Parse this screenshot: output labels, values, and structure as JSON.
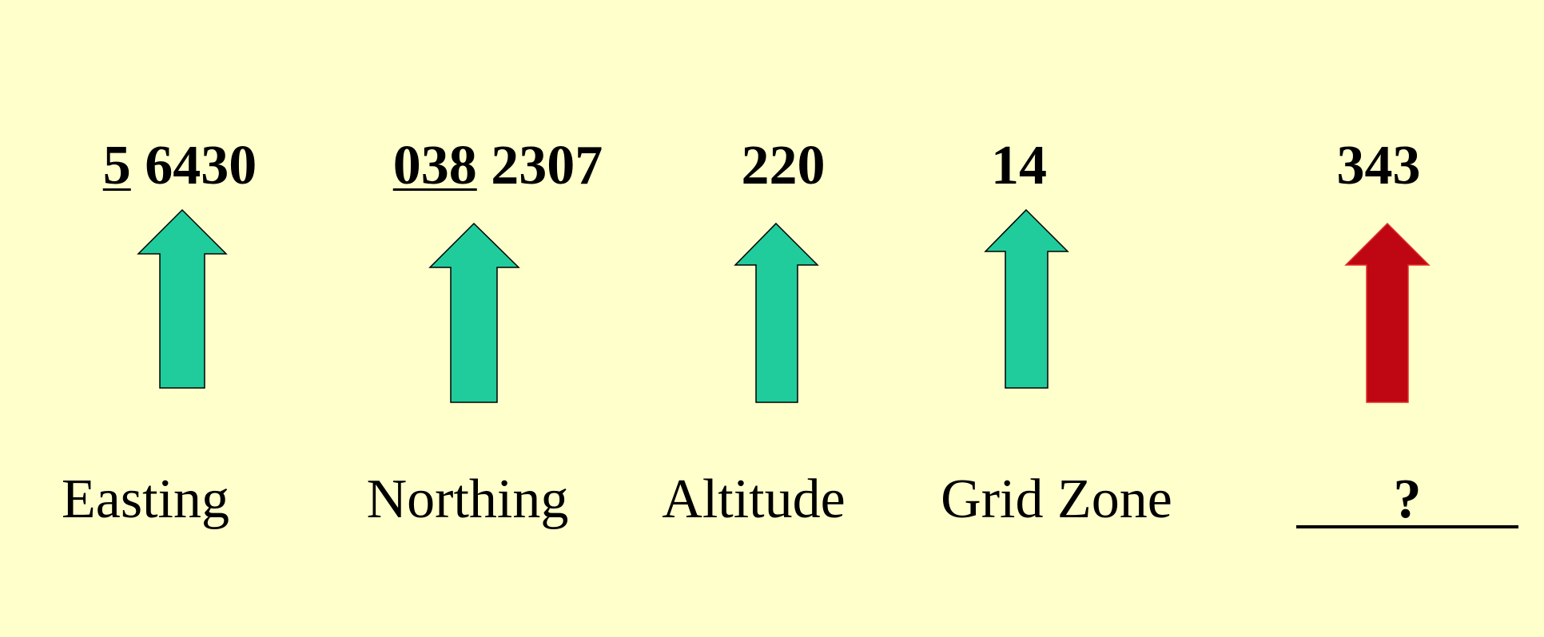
{
  "columns": [
    {
      "id": "easting",
      "value_prefix": "5",
      "value_rest": " 6430",
      "label": "Easting",
      "arrow_color": "#20cc9c"
    },
    {
      "id": "northing",
      "value_prefix": "038",
      "value_rest": " 2307",
      "label": "Northing",
      "arrow_color": "#20cc9c"
    },
    {
      "id": "altitude",
      "value_prefix": "",
      "value_rest": "220",
      "label": "Altitude",
      "arrow_color": "#20cc9c"
    },
    {
      "id": "grid-zone",
      "value_prefix": "",
      "value_rest": "14",
      "label": "Grid Zone",
      "arrow_color": "#20cc9c"
    },
    {
      "id": "unknown",
      "value_prefix": "",
      "value_rest": "343",
      "label": "?",
      "arrow_color": "#be0712"
    }
  ],
  "colors": {
    "background": "#ffffcc",
    "arrow_known": "#20cc9c",
    "arrow_unknown": "#be0712",
    "text": "#000000"
  }
}
